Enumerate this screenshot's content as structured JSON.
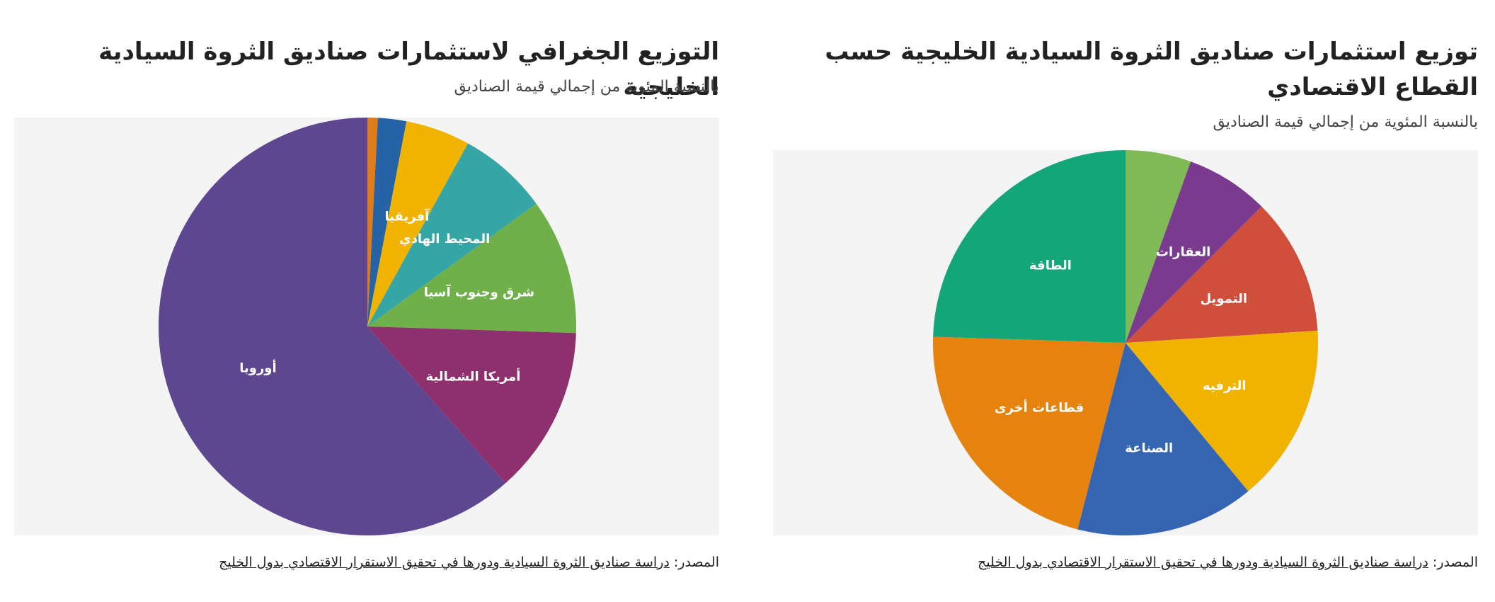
{
  "chart_data": [
    {
      "type": "pie",
      "title": "التوزيع الجغرافي لاستثمارات صناديق الثروة السيادية الخليجية",
      "subtitle": "بالنسبة المئوية من إجمالي قيمة الصناديق",
      "slices": [
        {
          "label": "",
          "value": 0.8,
          "color": "#e07b1a"
        },
        {
          "label": "",
          "value": 2.2,
          "color": "#2563a6"
        },
        {
          "label": "آفريقيا",
          "value": 5.0,
          "color": "#f0b400"
        },
        {
          "label": "المحيط الهادي",
          "value": 7.0,
          "color": "#36a5a5"
        },
        {
          "label": "شرق وجنوب آسيا",
          "value": 10.5,
          "color": "#6fb04a"
        },
        {
          "label": "أمريكا الشمالية",
          "value": 13.0,
          "color": "#8e2f6e"
        },
        {
          "label": "أوروبا",
          "value": 61.5,
          "color": "#5e4690"
        }
      ],
      "source_prefix": "المصدر:",
      "source_link": "دراسة صناديق الثروة السيادية ودورها في تحقيق الاستقرار الاقتصادي بدول الخليج"
    },
    {
      "type": "pie",
      "title": "توزيع استثمارات صناديق الثروة السيادية الخليجية حسب القطاع الاقتصادي",
      "subtitle": "بالنسبة المئوية من إجمالي قيمة الصناديق",
      "slices": [
        {
          "label": "",
          "value": 5.5,
          "color": "#7fba56"
        },
        {
          "label": "العقارات",
          "value": 7.0,
          "color": "#7a3b8f"
        },
        {
          "label": "التمويل",
          "value": 11.5,
          "color": "#cf4f3a"
        },
        {
          "label": "الترفيه",
          "value": 15.0,
          "color": "#f0b400"
        },
        {
          "label": "الصناعة",
          "value": 15.0,
          "color": "#3565b0"
        },
        {
          "label": "قطاعات أخرى",
          "value": 21.5,
          "color": "#e5830e"
        },
        {
          "label": "الطاقة",
          "value": 24.5,
          "color": "#13a678"
        }
      ],
      "source_prefix": "المصدر:",
      "source_link": "دراسة صناديق الثروة السيادية ودورها في تحقيق الاستقرار الاقتصادي بدول الخليج"
    }
  ]
}
